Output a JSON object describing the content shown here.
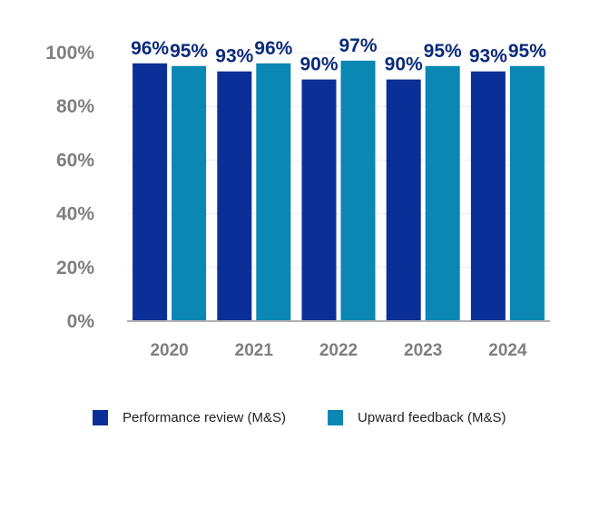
{
  "chart_data": {
    "type": "bar",
    "categories": [
      "2020",
      "2021",
      "2022",
      "2023",
      "2024"
    ],
    "series": [
      {
        "name": "Performance review (M&S)",
        "values": [
          96,
          93,
          90,
          90,
          93
        ],
        "labels": [
          "96%",
          "93%",
          "90%",
          "90%",
          "93%"
        ],
        "color": "#0a2f96"
      },
      {
        "name": "Upward feedback (M&S)",
        "values": [
          95,
          96,
          97,
          95,
          95
        ],
        "labels": [
          "95%",
          "96%",
          "97%",
          "95%",
          "95%"
        ],
        "color": "#0a87b2"
      }
    ],
    "yticks": [
      "0%",
      "20%",
      "40%",
      "60%",
      "80%",
      "100%"
    ],
    "ytick_values": [
      0,
      20,
      40,
      60,
      80,
      100
    ],
    "ylim": [
      0,
      100
    ],
    "grid": true,
    "legend_position": "bottom"
  }
}
